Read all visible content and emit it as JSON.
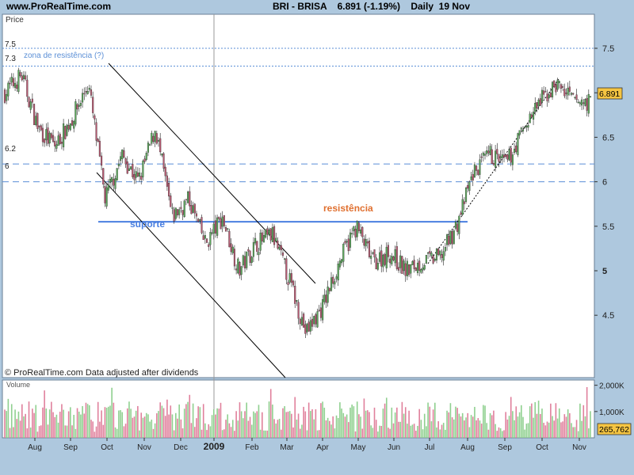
{
  "header": {
    "site": "www.ProRealTime.com",
    "symbol": "BRI - BRISA",
    "price": "6.891",
    "change": "(-1.19%)",
    "period": "Daily",
    "date": "19 Nov"
  },
  "colors": {
    "background": "#aec8de",
    "plot_bg": "#ffffff",
    "up_candle": "#5ca85c",
    "down_candle": "#b85a72",
    "support_line": "#4a7fe0",
    "support_label": "#4a7fe0",
    "resistance_label": "#e07030",
    "price_tag": "#f5c542",
    "volume_up": "#8fd08f",
    "volume_down": "#e0809c",
    "dashed_level": "#5b8fd6"
  },
  "main_panel": {
    "price_label": "Price",
    "watermark": "© ProRealTime.com  Data adjusted after dividends",
    "current_price_tag": "6.891"
  },
  "volume_panel": {
    "label": "Volume",
    "current_volume_tag": "265,762"
  },
  "annotations": {
    "zona_resistencia": "zona de resistência (?)",
    "resistencia": "resistência",
    "suporte": "suporte",
    "level_7_5": "7.5",
    "level_7_3": "7.3",
    "level_6_2": "6.2",
    "level_6": "6"
  },
  "chart_data": [
    {
      "type": "candlestick",
      "title": "BRI - BRISA 6.891 (-1.19%) Daily 19 Nov",
      "ylabel": "Price",
      "ylim": [
        4.2,
        7.6
      ],
      "y_ticks": [
        4.5,
        5,
        5.5,
        6,
        6.5,
        7,
        7.5
      ],
      "y_tick_labels": [
        "4.5",
        "5",
        "5.5",
        "6",
        "6.5",
        "7",
        "7.5"
      ],
      "x_tick_labels": [
        "Aug",
        "Sep",
        "Oct",
        "Nov",
        "Dec",
        "2009",
        "Feb",
        "Mar",
        "Apr",
        "May",
        "Jun",
        "Jul",
        "Aug",
        "Sep",
        "Oct",
        "Nov"
      ],
      "horizontal_levels": [
        7.5,
        7.3,
        6.2,
        6.0
      ],
      "support_resistance": 5.55,
      "close_series_approx": [
        {
          "x": "Jul",
          "y": 7.0
        },
        {
          "x": "Aug",
          "y": 7.2
        },
        {
          "x": "Aug",
          "y": 6.6
        },
        {
          "x": "Sep",
          "y": 6.4
        },
        {
          "x": "Sep",
          "y": 6.7
        },
        {
          "x": "Oct",
          "y": 7.1
        },
        {
          "x": "Oct",
          "y": 5.8
        },
        {
          "x": "Oct",
          "y": 6.3
        },
        {
          "x": "Nov",
          "y": 6.0
        },
        {
          "x": "Nov",
          "y": 6.6
        },
        {
          "x": "Dec",
          "y": 5.6
        },
        {
          "x": "Dec",
          "y": 5.8
        },
        {
          "x": "Dec",
          "y": 5.3
        },
        {
          "x": "2009",
          "y": 5.6
        },
        {
          "x": "2009",
          "y": 5.0
        },
        {
          "x": "Feb",
          "y": 5.3
        },
        {
          "x": "Feb",
          "y": 5.4
        },
        {
          "x": "Mar",
          "y": 4.9
        },
        {
          "x": "Mar",
          "y": 4.3
        },
        {
          "x": "Mar",
          "y": 4.6
        },
        {
          "x": "Apr",
          "y": 5.1
        },
        {
          "x": "Apr",
          "y": 5.5
        },
        {
          "x": "May",
          "y": 5.1
        },
        {
          "x": "May",
          "y": 5.2
        },
        {
          "x": "Jun",
          "y": 5.0
        },
        {
          "x": "Jun",
          "y": 5.1
        },
        {
          "x": "Jul",
          "y": 5.15
        },
        {
          "x": "Jul",
          "y": 5.5
        },
        {
          "x": "Aug",
          "y": 6.1
        },
        {
          "x": "Aug",
          "y": 6.3
        },
        {
          "x": "Sep",
          "y": 6.2
        },
        {
          "x": "Sep",
          "y": 6.6
        },
        {
          "x": "Oct",
          "y": 6.9
        },
        {
          "x": "Oct",
          "y": 7.1
        },
        {
          "x": "Nov",
          "y": 6.9
        },
        {
          "x": "Nov",
          "y": 6.891
        }
      ]
    },
    {
      "type": "bar",
      "title": "Volume",
      "y_tick_labels": [
        "2,000K",
        "1,000K"
      ],
      "y_ticks": [
        2000000,
        1000000
      ],
      "ylim": [
        0,
        2200000
      ],
      "last_value": 265762
    }
  ]
}
